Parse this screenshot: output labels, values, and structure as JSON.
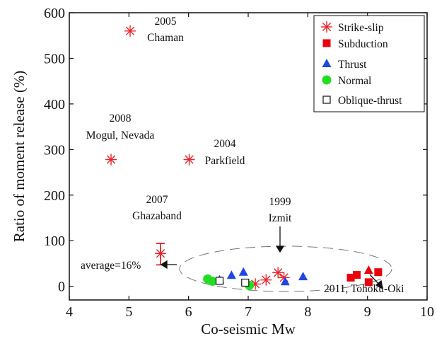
{
  "chart_data": {
    "type": "scatter",
    "xlabel": "Co-seismic Mw",
    "ylabel": "Ratio of moment release (%)",
    "xlim": [
      4,
      10
    ],
    "ylim": [
      -30,
      600
    ],
    "x_ticks": [
      4,
      5,
      6,
      7,
      8,
      9,
      10
    ],
    "y_ticks": [
      0,
      100,
      200,
      300,
      400,
      500,
      600
    ],
    "legend_position": "top-right",
    "series": [
      {
        "name": "Strike-slip",
        "marker": "asterisk",
        "color": "#e8242a",
        "points": [
          {
            "x": 5.02,
            "y": 560
          },
          {
            "x": 4.7,
            "y": 278
          },
          {
            "x": 6.01,
            "y": 278
          },
          {
            "x": 5.53,
            "y": 72
          },
          {
            "x": 7.12,
            "y": 5
          },
          {
            "x": 7.3,
            "y": 14
          },
          {
            "x": 7.5,
            "y": 30
          },
          {
            "x": 7.6,
            "y": 19
          }
        ]
      },
      {
        "name": "Subduction",
        "marker": "square",
        "color": "#e8000b",
        "points": [
          {
            "x": 8.72,
            "y": 19
          },
          {
            "x": 8.82,
            "y": 25
          },
          {
            "x": 9.02,
            "y": 9
          },
          {
            "x": 9.18,
            "y": 31
          }
        ]
      },
      {
        "name": "Thrust",
        "marker": "triangle",
        "color": "#1f48e0",
        "points": [
          {
            "x": 6.52,
            "y": 14
          },
          {
            "x": 6.72,
            "y": 24
          },
          {
            "x": 6.92,
            "y": 31
          },
          {
            "x": 7.62,
            "y": 10
          },
          {
            "x": 7.92,
            "y": 21
          }
        ]
      },
      {
        "name": "Normal",
        "marker": "circle",
        "color": "#22dd22",
        "points": [
          {
            "x": 6.32,
            "y": 16
          },
          {
            "x": 6.4,
            "y": 11
          },
          {
            "x": 7.02,
            "y": 2
          }
        ]
      },
      {
        "name": "Oblique-thrust",
        "marker": "open-square",
        "color": "#111111",
        "points": [
          {
            "x": 6.52,
            "y": 12
          },
          {
            "x": 6.95,
            "y": 8
          }
        ]
      }
    ],
    "error_bar": {
      "x": 5.53,
      "y_low": 47,
      "y_high": 94,
      "color": "#e8242a"
    },
    "extra_marks": [
      {
        "marker": "triangle",
        "color": "#e8000b",
        "x": 9.02,
        "y": 35
      }
    ],
    "annotations": [
      {
        "id": "chaman-year",
        "text": "2005"
      },
      {
        "id": "chaman-name",
        "text": "Chaman"
      },
      {
        "id": "mogul-year",
        "text": "2008"
      },
      {
        "id": "mogul-name",
        "text": "Mogul, Nevada"
      },
      {
        "id": "parkfield-year",
        "text": "2004"
      },
      {
        "id": "parkfield-name",
        "text": "Parkfield"
      },
      {
        "id": "ghazaband-year",
        "text": "2007"
      },
      {
        "id": "ghazaband-name",
        "text": "Ghazaband"
      },
      {
        "id": "izmit-year",
        "text": "1999"
      },
      {
        "id": "izmit-name",
        "text": "Izmit"
      },
      {
        "id": "average",
        "text": "average=16%"
      },
      {
        "id": "tohoku",
        "text": "2011, Tohoku-Oki"
      }
    ]
  }
}
